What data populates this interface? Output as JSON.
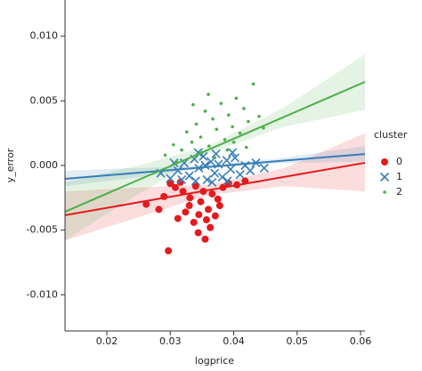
{
  "chart_data": {
    "type": "scatter",
    "xlabel": "logprice",
    "ylabel": "y_error",
    "xlim": [
      0.0134,
      0.0607
    ],
    "ylim": [
      -0.0128,
      0.0128
    ],
    "xticks": [
      0.02,
      0.03,
      0.04,
      0.05,
      0.06
    ],
    "yticks": [
      {
        "value": -0.01,
        "label": "-0.010"
      },
      {
        "value": -0.005,
        "label": "-0.005"
      },
      {
        "value": 0,
        "label": "0.000"
      },
      {
        "value": 0.005,
        "label": "0.005"
      },
      {
        "value": 0.01,
        "label": "0.010"
      }
    ],
    "legend_title": "cluster",
    "legend_position": "right",
    "fit_x": [
      0.0134,
      0.025,
      0.036,
      0.048,
      0.0607
    ],
    "series": [
      {
        "name": "0",
        "color": "#e41a1c",
        "marker": "circle",
        "x": [
          0.0297,
          0.0312,
          0.0324,
          0.0337,
          0.0344,
          0.0355,
          0.0363,
          0.0371,
          0.0378,
          0.036,
          0.0348,
          0.0331,
          0.032,
          0.0308,
          0.03,
          0.0316,
          0.034,
          0.0352,
          0.0366,
          0.0383,
          0.0392,
          0.0405,
          0.0418,
          0.0262,
          0.0282,
          0.029,
          0.0357,
          0.0345,
          0.033,
          0.0375
        ],
        "values": [
          -0.0066,
          -0.0041,
          -0.0036,
          -0.0044,
          -0.0052,
          -0.0057,
          -0.0048,
          -0.0039,
          -0.0031,
          -0.0034,
          -0.0028,
          -0.0025,
          -0.002,
          -0.0017,
          -0.0014,
          -0.0013,
          -0.0016,
          -0.002,
          -0.0022,
          -0.0017,
          -0.0014,
          -0.0015,
          -0.0012,
          -0.003,
          -0.0034,
          -0.0024,
          -0.0042,
          -0.0038,
          -0.0031,
          -0.0026
        ],
        "fit": [
          -0.00385,
          -0.00285,
          -0.00191,
          -0.00088,
          0.00021
        ],
        "ci_lower": [
          -0.0058,
          -0.004,
          -0.0023,
          -0.0016,
          -0.002
        ],
        "ci_upper": [
          -0.002,
          -0.0017,
          -0.0015,
          -0.0002,
          0.0025
        ]
      },
      {
        "name": "1",
        "color": "#377eb8",
        "marker": "x",
        "x": [
          0.0285,
          0.03,
          0.0312,
          0.0322,
          0.033,
          0.0338,
          0.0345,
          0.0352,
          0.0358,
          0.0364,
          0.037,
          0.0376,
          0.0382,
          0.0389,
          0.0395,
          0.0402,
          0.041,
          0.0418,
          0.0426,
          0.0435,
          0.0448,
          0.034,
          0.0366,
          0.0318,
          0.039,
          0.0355,
          0.0372,
          0.0344,
          0.0398,
          0.0306
        ],
        "values": [
          -0.0006,
          -0.001,
          -0.0004,
          0.0002,
          -0.0008,
          0.0005,
          -0.0002,
          0.0007,
          -0.0011,
          0.0003,
          -0.0006,
          0.0001,
          -0.0009,
          0.0004,
          -0.0003,
          0.0006,
          -0.0007,
          0.0,
          -0.0004,
          0.0002,
          -0.0002,
          -0.0012,
          -0.0013,
          -0.0011,
          -0.0012,
          0.0,
          0.0009,
          0.001,
          0.001,
          0.0002
        ],
        "fit": [
          -0.00103,
          -0.00056,
          -0.00011,
          0.00038,
          0.00089
        ],
        "ci_lower": [
          -0.0016,
          -0.0009,
          -0.0002,
          0.0002,
          0.0003
        ],
        "ci_upper": [
          -0.0004,
          -0.0002,
          0.0,
          0.0006,
          0.0015
        ]
      },
      {
        "name": "2",
        "color": "#4daf4a",
        "marker": "dot",
        "x": [
          0.0292,
          0.0305,
          0.0318,
          0.0326,
          0.0334,
          0.0341,
          0.0348,
          0.0355,
          0.0361,
          0.0367,
          0.0373,
          0.038,
          0.0386,
          0.0392,
          0.0398,
          0.0404,
          0.041,
          0.0416,
          0.0423,
          0.0431,
          0.044,
          0.0447,
          0.035,
          0.037,
          0.039,
          0.0336,
          0.036,
          0.04,
          0.042,
          0.031
        ],
        "values": [
          0.0008,
          0.0016,
          0.0012,
          0.0026,
          0.0018,
          0.0032,
          0.0022,
          0.0042,
          0.0015,
          0.0036,
          0.0028,
          0.0048,
          0.002,
          0.0039,
          0.003,
          0.0052,
          0.0025,
          0.0044,
          0.0034,
          0.0063,
          0.0038,
          0.0029,
          0.001,
          0.0006,
          0.0012,
          0.0047,
          0.0055,
          0.0018,
          0.0014,
          0.0003
        ],
        "fit": [
          -0.00358,
          -0.00111,
          0.00122,
          0.00377,
          0.00647
        ],
        "ci_lower": [
          -0.0058,
          -0.0022,
          0.0009,
          0.003,
          0.0043
        ],
        "ci_upper": [
          -0.0013,
          0.0,
          0.0015,
          0.0045,
          0.0086
        ]
      }
    ]
  }
}
